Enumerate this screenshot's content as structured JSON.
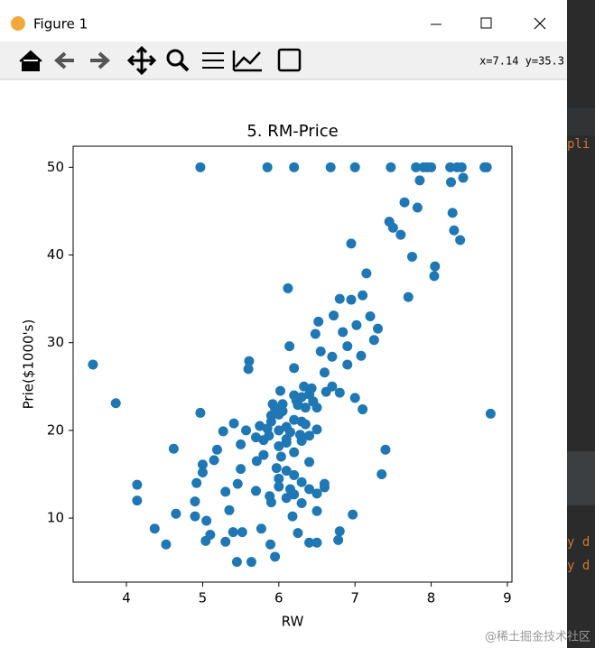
{
  "window": {
    "title": "Figure 1",
    "coords": "x=7.14 y=35.3"
  },
  "editor": {
    "fragments": [
      "pli",
      "y d",
      "y d"
    ],
    "watermark": "@稀土掘金技术社区"
  },
  "chart_data": {
    "type": "scatter",
    "title": "5. RM-Price",
    "x_label": "RW",
    "y_label": "Prie($1000's)",
    "xlim": [
      3.3,
      9.06
    ],
    "ylim": [
      2.7,
      52.4
    ],
    "xticks": [
      4,
      5,
      6,
      7,
      8,
      9
    ],
    "yticks": [
      10,
      20,
      30,
      40,
      50
    ],
    "x": [
      3.56,
      3.86,
      4.14,
      4.14,
      4.37,
      4.52,
      4.62,
      4.65,
      4.9,
      4.9,
      4.92,
      4.97,
      4.97,
      5.0,
      5.0,
      5.04,
      5.05,
      5.1,
      5.15,
      5.19,
      5.27,
      5.3,
      5.3,
      5.35,
      5.4,
      5.41,
      5.45,
      5.46,
      5.5,
      5.5,
      5.52,
      5.57,
      5.6,
      5.61,
      5.64,
      5.7,
      5.7,
      5.71,
      5.75,
      5.77,
      5.8,
      5.85,
      5.87,
      5.88,
      5.89,
      5.9,
      5.92,
      5.95,
      5.97,
      6.0,
      6.02,
      6.03,
      6.05,
      6.1,
      6.12,
      6.14,
      6.15,
      6.18,
      6.2,
      6.2,
      6.2,
      6.23,
      6.25,
      6.28,
      6.3,
      6.33,
      6.35,
      6.4,
      6.4,
      6.43,
      6.48,
      6.5,
      6.5,
      6.5,
      6.52,
      6.55,
      6.6,
      6.62,
      6.68,
      6.7,
      6.72,
      6.78,
      6.8,
      6.8,
      6.84,
      6.9,
      6.95,
      6.95,
      6.97,
      7.0,
      7.02,
      7.08,
      7.1,
      7.15,
      7.2,
      7.25,
      7.3,
      7.35,
      7.4,
      7.45,
      7.47,
      7.5,
      7.6,
      7.65,
      7.7,
      7.75,
      7.8,
      7.82,
      7.85,
      7.9,
      7.95,
      8.0,
      8.04,
      8.05,
      8.25,
      8.26,
      8.28,
      8.3,
      8.34,
      8.38,
      8.4,
      8.42,
      8.7,
      8.73,
      8.78,
      5.9,
      5.95,
      6.0,
      6.05,
      6.1,
      6.15,
      6.2,
      6.25,
      6.3,
      6.35,
      6.4,
      6.45,
      5.8,
      5.85,
      6.0,
      6.1,
      6.2,
      6.3,
      6.4,
      6.5,
      6.6,
      6.7,
      6.8,
      6.9,
      7.0,
      7.1,
      6.0,
      6.1,
      6.2,
      6.3,
      5.9,
      6.0,
      6.1,
      6.2,
      6.3,
      6.4,
      6.5,
      6.6
    ],
    "series": [
      {
        "color": "#1f77b4",
        "values": [
          27.5,
          23.1,
          13.8,
          12.0,
          8.8,
          7.0,
          17.9,
          10.5,
          10.2,
          11.9,
          14.0,
          22.0,
          50,
          16.1,
          15.2,
          7.4,
          9.7,
          8.1,
          16.6,
          17.8,
          19.9,
          13.0,
          7.3,
          10.9,
          8.4,
          20.8,
          5.0,
          13.9,
          15.6,
          18.4,
          8.4,
          20.0,
          27.0,
          27.9,
          5.0,
          13.1,
          19.2,
          16.5,
          20.5,
          8.8,
          17.2,
          50,
          19.4,
          12.5,
          7.0,
          21.7,
          23.0,
          5.6,
          15.7,
          20.0,
          24.5,
          17.0,
          22.2,
          18.6,
          36.2,
          29.6,
          13.3,
          10.2,
          50,
          27.1,
          24.0,
          23.4,
          8.3,
          19.5,
          21.0,
          25.0,
          22.6,
          7.2,
          19.4,
          24.8,
          31.0,
          7.2,
          10.8,
          22.6,
          32.4,
          29.0,
          13.5,
          24.4,
          50,
          28.4,
          33.1,
          7.5,
          8.5,
          35.0,
          31.2,
          29.6,
          34.9,
          41.3,
          10.4,
          50,
          32.0,
          28.5,
          35.4,
          37.9,
          33.0,
          30.3,
          31.6,
          15.0,
          17.8,
          43.8,
          50,
          43.1,
          42.3,
          46.0,
          35.2,
          39.8,
          50,
          45.4,
          48.5,
          50,
          50,
          50,
          37.6,
          38.7,
          50,
          48.3,
          44.8,
          42.8,
          50,
          41.7,
          50,
          48.8,
          50,
          50,
          21.9,
          21.0,
          22.5,
          21.8,
          23.0,
          20.4,
          19.8,
          21.2,
          22.9,
          23.8,
          20.7,
          24.1,
          23.3,
          18.9,
          20.2,
          18.2,
          19.0,
          17.5,
          18.8,
          16.4,
          20.1,
          26.6,
          25.0,
          24.3,
          27.5,
          23.7,
          22.4,
          14.5,
          15.4,
          12.7,
          14.1,
          11.8,
          13.6,
          12.3,
          14.9,
          11.7,
          13.3,
          12.8,
          13.9
        ]
      }
    ]
  }
}
